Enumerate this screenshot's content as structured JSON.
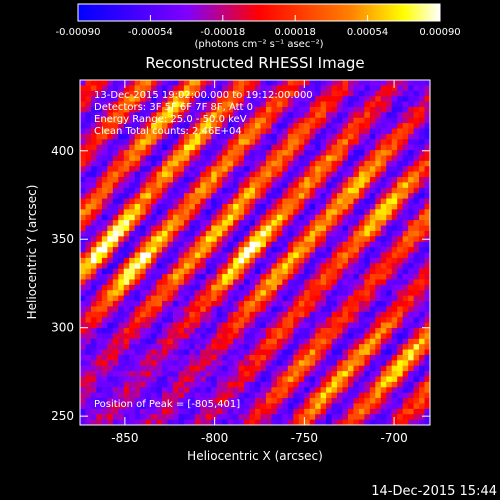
{
  "chart_data": {
    "type": "heatmap",
    "title": "Reconstructed RHESSI Image",
    "xlabel": "Heliocentric X (arcsec)",
    "ylabel": "Heliocentric Y (arcsec)",
    "xlim": [
      -875,
      -680
    ],
    "ylim": [
      245,
      440
    ],
    "x_ticks": [
      -850,
      -800,
      -750,
      -700
    ],
    "y_ticks": [
      250,
      300,
      350,
      400
    ],
    "colorbar": {
      "min": -0.0009,
      "max": 0.0009,
      "ticks": [
        -0.0009,
        -0.00054,
        -0.00018,
        0.00018,
        0.00054,
        0.0009
      ],
      "tick_labels": [
        "-0.00090",
        "-0.00054",
        "-0.00018",
        "0.00018",
        "0.00054",
        "0.00090"
      ],
      "unit_label": "(photons cm⁻² s⁻¹ asec⁻²)",
      "colors": [
        "#0000ff",
        "#7f00ff",
        "#ff0000",
        "#ff7f00",
        "#ffff00",
        "#ffffff"
      ]
    },
    "annotations": [
      "13-Dec-2015 19:02:00.000 to 19:12:00.000",
      "Detectors: 3F 5F 6F 7F 8F, Att 0",
      "Energy Range: 25.0 - 50.0 keV",
      "Clean    Total counts: 2.46E+04"
    ],
    "peak_label": "Position of Peak = [-805,401]",
    "peak_position": [
      -805,
      401
    ],
    "grid": false
  },
  "footer": {
    "timestamp": "14-Dec-2015 15:44"
  }
}
